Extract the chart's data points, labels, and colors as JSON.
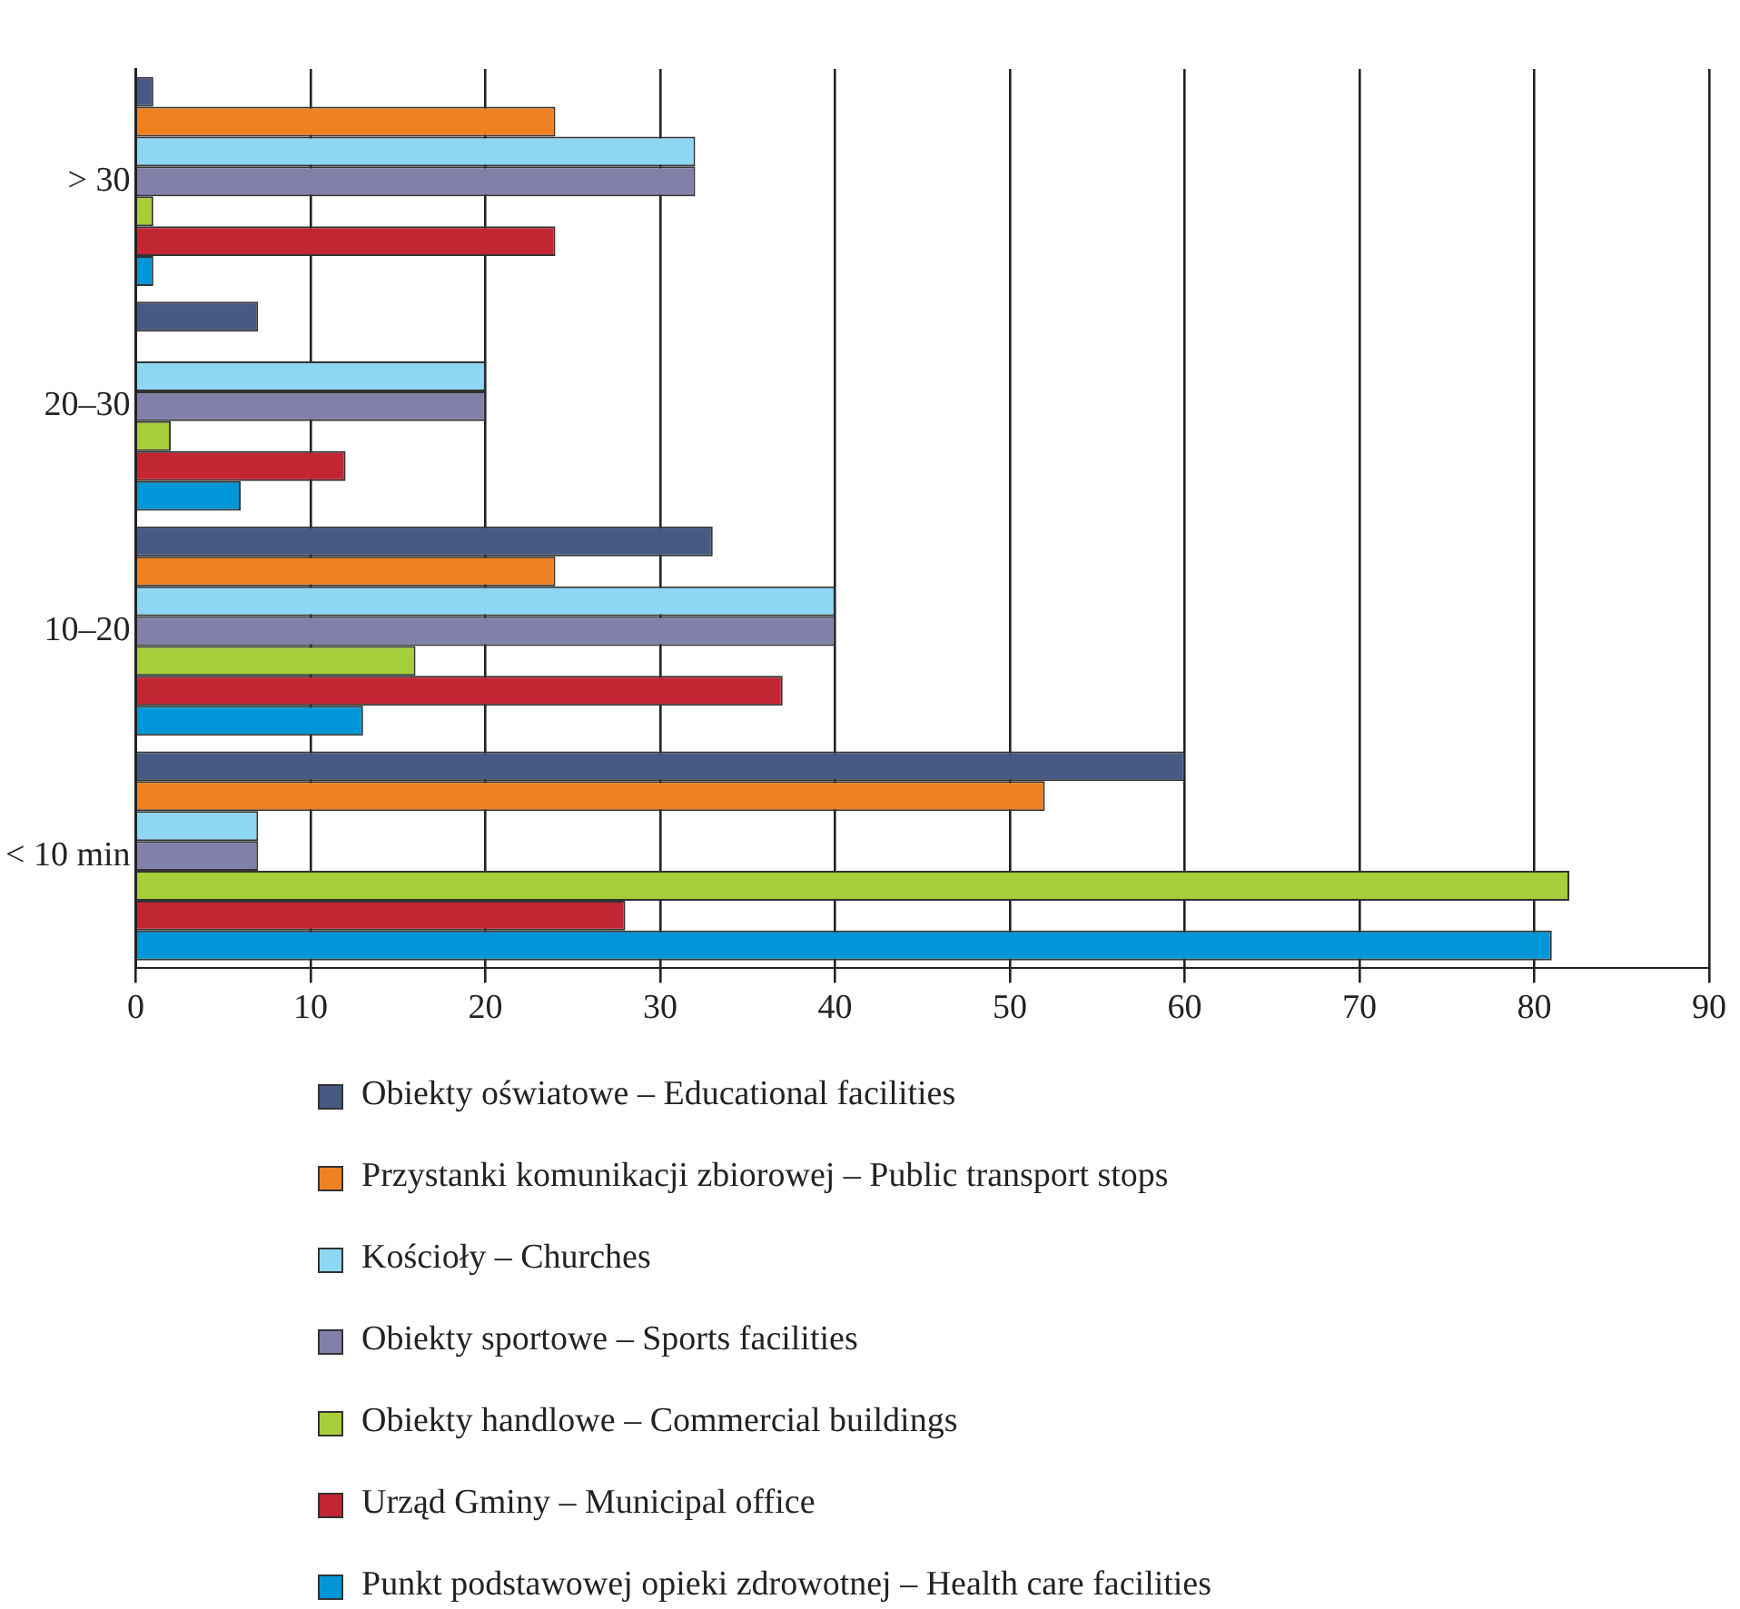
{
  "chart_data": {
    "type": "bar",
    "orientation": "horizontal",
    "categories": [
      "> 30",
      "20–30",
      "10–20",
      "< 10 min"
    ],
    "series": [
      {
        "name": "Obiekty oświatowe – Educational facilities",
        "color": "#475a84",
        "values": [
          1,
          7,
          33,
          60
        ]
      },
      {
        "name": "Przystanki komunikacji zbiorowej – Public transport stops",
        "color": "#f08122",
        "values": [
          24,
          0,
          24,
          52
        ]
      },
      {
        "name": "Kościoły – Churches",
        "color": "#8dd7f5",
        "values": [
          32,
          20,
          40,
          7
        ]
      },
      {
        "name": "Obiekty sportowe – Sports facilities",
        "color": "#8180a8",
        "values": [
          32,
          20,
          40,
          7
        ]
      },
      {
        "name": "Obiekty handlowe – Commercial buildings",
        "color": "#a6cd3a",
        "values": [
          1,
          2,
          16,
          82
        ]
      },
      {
        "name": "Urząd Gminy – Municipal office",
        "color": "#c22632",
        "values": [
          24,
          12,
          37,
          28
        ]
      },
      {
        "name": "Punkt podstawowej opieki zdrowotnej – Health care facilities",
        "color": "#0096d8",
        "values": [
          1,
          6,
          13,
          81
        ]
      }
    ],
    "xlim": [
      0,
      90
    ],
    "xticks": [
      0,
      10,
      20,
      30,
      40,
      50,
      60,
      70,
      80,
      90
    ],
    "grid": "x",
    "legend": "bottom"
  }
}
